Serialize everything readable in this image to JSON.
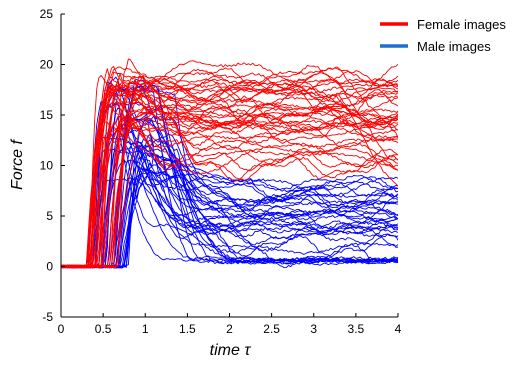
{
  "chart_data": {
    "type": "line",
    "title": "",
    "xlabel": "time τ",
    "ylabel": "Force f",
    "xlim": [
      0,
      4
    ],
    "ylim": [
      -5,
      25
    ],
    "xticks": [
      "0",
      "0.5",
      "1",
      "1.5",
      "2",
      "2.5",
      "3",
      "3.5",
      "4"
    ],
    "xtick_values": [
      0,
      0.5,
      1,
      1.5,
      2,
      2.5,
      3,
      3.5,
      4
    ],
    "yticks": [
      "-5",
      "0",
      "5",
      "10",
      "15",
      "20",
      "25"
    ],
    "ytick_values": [
      -5,
      0,
      5,
      10,
      15,
      20,
      25
    ],
    "grid": false,
    "legend_position": "top-right",
    "series": [
      {
        "name": "Female images",
        "color": "#ff0000",
        "trace_count": 40,
        "plateau_range": [
          9,
          20.5
        ],
        "rise_start_range": [
          0.3,
          0.75
        ],
        "example_trace": {
          "x": [
            0,
            0.4,
            0.6,
            0.8,
            1.0,
            1.5,
            2.0,
            2.5,
            3.0,
            3.5,
            4.0
          ],
          "y": [
            0,
            0,
            12,
            16,
            17,
            18,
            17.5,
            17,
            17.5,
            17,
            17
          ]
        }
      },
      {
        "name": "Male images",
        "color": "#0000ff",
        "trace_count": 40,
        "plateau_range": [
          0,
          8.5
        ],
        "peak_range": [
          8,
          18.5
        ],
        "example_trace": {
          "x": [
            0,
            0.4,
            0.6,
            0.9,
            1.2,
            1.5,
            2.0,
            2.5,
            3.0,
            3.5,
            4.0
          ],
          "y": [
            0,
            0,
            10,
            15,
            12,
            7,
            5,
            4.5,
            4,
            4,
            4
          ]
        }
      }
    ]
  }
}
